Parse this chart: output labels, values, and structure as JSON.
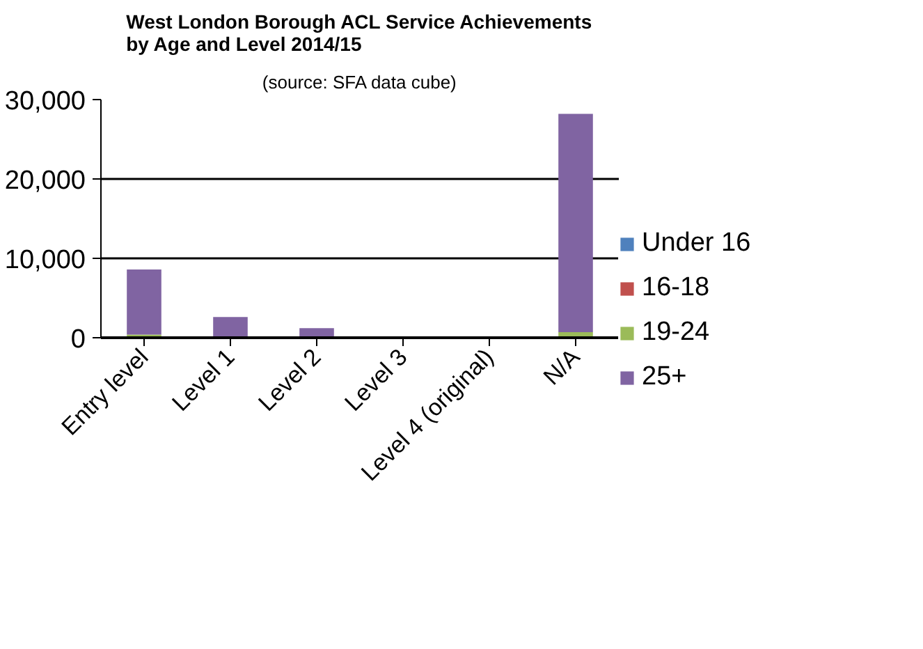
{
  "chart_data": {
    "type": "bar",
    "stacked": true,
    "title": "West London Borough ACL Service Achievements\nby Age and Level 2014/15",
    "subtitle": "(source: SFA data cube)",
    "categories": [
      "Entry level",
      "Level 1",
      "Level 2",
      "Level 3",
      "Level 4 (original)",
      "N/A"
    ],
    "series": [
      {
        "name": "Under 16",
        "color": "#4f81bd",
        "values": [
          0,
          0,
          0,
          0,
          0,
          0
        ]
      },
      {
        "name": "16-18",
        "color": "#c0504d",
        "values": [
          0,
          0,
          0,
          0,
          0,
          0
        ]
      },
      {
        "name": "19-24",
        "color": "#9bbb59",
        "values": [
          400,
          0,
          0,
          0,
          0,
          700
        ]
      },
      {
        "name": "25+",
        "color": "#8064a2",
        "values": [
          8200,
          2600,
          1200,
          0,
          0,
          27500
        ]
      }
    ],
    "ylim": [
      0,
      30000
    ],
    "yticks": [
      {
        "value": 0,
        "label": "0"
      },
      {
        "value": 10000,
        "label": "10,000"
      },
      {
        "value": 20000,
        "label": "20,000"
      },
      {
        "value": 30000,
        "label": "30,000"
      }
    ],
    "grid": "y",
    "legend": "right"
  }
}
